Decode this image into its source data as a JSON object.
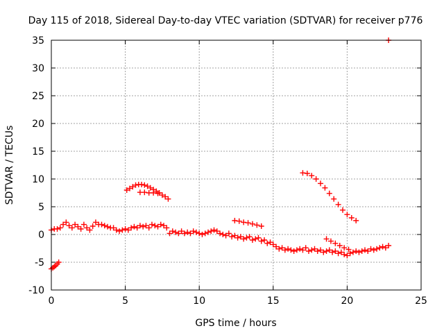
{
  "chart_data": {
    "type": "scatter",
    "title": "Day 115 of 2018, Sidereal Day-to-day VTEC variation (SDTVAR) for receiver p776",
    "xlabel": "GPS time / hours",
    "ylabel": "SDTVAR / TECUs",
    "xlim": [
      0,
      25
    ],
    "ylim": [
      -10,
      35
    ],
    "xticks": [
      0,
      5,
      10,
      15,
      20,
      25
    ],
    "yticks": [
      -10,
      -5,
      0,
      5,
      10,
      15,
      20,
      25,
      30,
      35
    ],
    "grid": true,
    "marker": "plus",
    "marker_color": "#ff0000",
    "series": [
      {
        "name": "main-track",
        "x": [
          0.0,
          0.2,
          0.4,
          0.6,
          0.8,
          1.0,
          1.2,
          1.4,
          1.6,
          1.8,
          2.0,
          2.2,
          2.4,
          2.6,
          2.8,
          3.0,
          3.2,
          3.4,
          3.6,
          3.8,
          4.0,
          4.2,
          4.4,
          4.6,
          4.8,
          5.0,
          5.2,
          5.4,
          5.6,
          5.8,
          6.0,
          6.2,
          6.4,
          6.6,
          6.8,
          7.0,
          7.2,
          7.4,
          7.6,
          7.8,
          8.0,
          8.2,
          8.4,
          8.6,
          8.8,
          9.0,
          9.2,
          9.4,
          9.6,
          9.8,
          10.0,
          10.2,
          10.4,
          10.6,
          10.8,
          11.0,
          11.2,
          11.4,
          11.6,
          11.8,
          12.0,
          12.2,
          12.4,
          12.6,
          12.8,
          13.0,
          13.2,
          13.4,
          13.6,
          13.8,
          14.0,
          14.2,
          14.4,
          14.6,
          14.8,
          15.0,
          15.2,
          15.4,
          15.6,
          15.8,
          16.0,
          16.2,
          16.4,
          16.6,
          16.8,
          17.0,
          17.2,
          17.4,
          17.6,
          17.8,
          18.0,
          18.2,
          18.4,
          18.6,
          18.8,
          19.0,
          19.2,
          19.4,
          19.6,
          19.8,
          20.0,
          20.2,
          20.4,
          20.6,
          20.8,
          21.0,
          21.2,
          21.4,
          21.6,
          21.8,
          22.0,
          22.2,
          22.4,
          22.6,
          22.8
        ],
        "y": [
          0.8,
          1.0,
          1.0,
          1.2,
          1.8,
          2.2,
          1.6,
          1.2,
          1.8,
          1.4,
          1.0,
          1.8,
          1.2,
          0.8,
          1.5,
          2.2,
          1.8,
          1.8,
          1.6,
          1.4,
          1.2,
          1.2,
          0.8,
          0.6,
          0.8,
          1.0,
          0.8,
          1.2,
          1.4,
          1.2,
          1.6,
          1.4,
          1.6,
          1.2,
          1.8,
          1.6,
          1.4,
          1.8,
          1.6,
          1.2,
          0.2,
          0.6,
          0.4,
          0.2,
          0.6,
          0.2,
          0.4,
          0.2,
          0.6,
          0.4,
          0.2,
          0.0,
          0.2,
          0.4,
          0.6,
          0.8,
          0.6,
          0.2,
          0.0,
          -0.2,
          0.2,
          -0.4,
          -0.2,
          -0.6,
          -0.4,
          -0.8,
          -0.6,
          -0.4,
          -1.0,
          -0.8,
          -0.6,
          -1.2,
          -1.0,
          -1.6,
          -1.4,
          -1.8,
          -2.2,
          -2.6,
          -2.4,
          -2.8,
          -2.6,
          -2.8,
          -3.0,
          -2.8,
          -2.6,
          -2.8,
          -2.4,
          -3.0,
          -2.8,
          -2.6,
          -3.0,
          -2.8,
          -3.2,
          -3.0,
          -2.8,
          -3.2,
          -3.0,
          -3.4,
          -3.2,
          -3.6,
          -3.8,
          -3.4,
          -3.2,
          -3.0,
          -3.2,
          -3.0,
          -2.8,
          -3.0,
          -2.6,
          -2.8,
          -2.6,
          -2.4,
          -2.2,
          -2.4,
          -2.0
        ]
      },
      {
        "name": "start-dip",
        "x": [
          0.0,
          0.1,
          0.2,
          0.3,
          0.4,
          0.5
        ],
        "y": [
          -6.2,
          -6.0,
          -5.8,
          -5.6,
          -5.3,
          -5.0
        ]
      },
      {
        "name": "hump-1",
        "x": [
          5.1,
          5.3,
          5.5,
          5.7,
          5.9,
          6.1,
          6.3,
          6.5,
          6.7,
          6.9,
          7.1,
          7.3,
          7.5,
          7.7,
          7.9
        ],
        "y": [
          8.0,
          8.3,
          8.6,
          8.9,
          9.0,
          9.0,
          8.9,
          8.7,
          8.4,
          8.1,
          7.8,
          7.5,
          7.1,
          6.8,
          6.4
        ]
      },
      {
        "name": "hump-1-lower",
        "x": [
          6.0,
          6.3,
          6.6,
          6.9,
          7.2
        ],
        "y": [
          7.6,
          7.6,
          7.5,
          7.5,
          7.4
        ]
      },
      {
        "name": "mid-segment",
        "x": [
          12.4,
          12.7,
          13.0,
          13.3,
          13.6,
          13.9,
          14.2
        ],
        "y": [
          2.5,
          2.4,
          2.2,
          2.1,
          1.9,
          1.7,
          1.5
        ]
      },
      {
        "name": "decline-arc",
        "x": [
          17.0,
          17.3,
          17.6,
          17.9,
          18.2,
          18.5,
          18.8,
          19.1,
          19.4,
          19.7,
          20.0,
          20.3,
          20.6
        ],
        "y": [
          11.1,
          11.0,
          10.6,
          10.0,
          9.2,
          8.4,
          7.4,
          6.4,
          5.4,
          4.4,
          3.6,
          3.0,
          2.5
        ]
      },
      {
        "name": "late-branch",
        "x": [
          18.6,
          18.9,
          19.2,
          19.5,
          19.8,
          20.1
        ],
        "y": [
          -0.8,
          -1.2,
          -1.6,
          -2.0,
          -2.4,
          -2.7
        ]
      },
      {
        "name": "outlier",
        "x": [
          22.8
        ],
        "y": [
          35.0
        ]
      }
    ]
  }
}
